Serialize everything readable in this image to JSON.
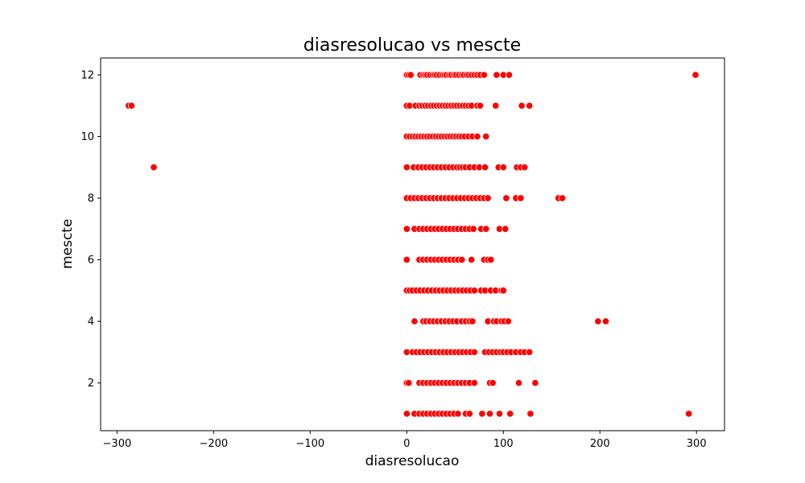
{
  "chart_data": {
    "type": "scatter",
    "title": "diasresolucao vs mescte",
    "xlabel": "diasresolucao",
    "ylabel": "mescte",
    "xlim": [
      -317,
      329
    ],
    "ylim": [
      0.45,
      12.55
    ],
    "x_ticks": [
      -300,
      -200,
      -100,
      0,
      100,
      200,
      300
    ],
    "y_ticks": [
      2,
      4,
      6,
      8,
      10,
      12
    ],
    "x_tick_labels": [
      "−300",
      "−200",
      "−100",
      "0",
      "100",
      "200",
      "300"
    ],
    "y_tick_labels": [
      "2",
      "4",
      "6",
      "8",
      "10",
      "12"
    ],
    "grid": false,
    "legend": "none",
    "marker_color": "#ff0000",
    "marker_edge_color": "#ffffff",
    "series": [
      {
        "points": [
          [
            0,
            12
          ],
          [
            2,
            12
          ],
          [
            4,
            12
          ],
          [
            14,
            12
          ],
          [
            17,
            12
          ],
          [
            19,
            12
          ],
          [
            21,
            12
          ],
          [
            24,
            12
          ],
          [
            27,
            12
          ],
          [
            29,
            12
          ],
          [
            31,
            12
          ],
          [
            34,
            12
          ],
          [
            37,
            12
          ],
          [
            39,
            12
          ],
          [
            41,
            12
          ],
          [
            44,
            12
          ],
          [
            46,
            12
          ],
          [
            49,
            12
          ],
          [
            51,
            12
          ],
          [
            54,
            12
          ],
          [
            57,
            12
          ],
          [
            59,
            12
          ],
          [
            62,
            12
          ],
          [
            64,
            12
          ],
          [
            67,
            12
          ],
          [
            70,
            12
          ],
          [
            73,
            12
          ],
          [
            76,
            12
          ],
          [
            80,
            12
          ],
          [
            93,
            12
          ],
          [
            100,
            12
          ],
          [
            106,
            12
          ],
          [
            299,
            12
          ],
          [
            -288,
            11
          ],
          [
            -285,
            11
          ],
          [
            0,
            11
          ],
          [
            3,
            11
          ],
          [
            9,
            11
          ],
          [
            13,
            11
          ],
          [
            16,
            11
          ],
          [
            19,
            11
          ],
          [
            22,
            11
          ],
          [
            25,
            11
          ],
          [
            28,
            11
          ],
          [
            31,
            11
          ],
          [
            34,
            11
          ],
          [
            37,
            11
          ],
          [
            40,
            11
          ],
          [
            43,
            11
          ],
          [
            46,
            11
          ],
          [
            49,
            11
          ],
          [
            52,
            11
          ],
          [
            55,
            11
          ],
          [
            58,
            11
          ],
          [
            61,
            11
          ],
          [
            64,
            11
          ],
          [
            67,
            11
          ],
          [
            73,
            11
          ],
          [
            76,
            11
          ],
          [
            92,
            11
          ],
          [
            119,
            11
          ],
          [
            127,
            11
          ],
          [
            0,
            10
          ],
          [
            3,
            10
          ],
          [
            6,
            10
          ],
          [
            9,
            10
          ],
          [
            12,
            10
          ],
          [
            15,
            10
          ],
          [
            18,
            10
          ],
          [
            21,
            10
          ],
          [
            24,
            10
          ],
          [
            27,
            10
          ],
          [
            30,
            10
          ],
          [
            33,
            10
          ],
          [
            36,
            10
          ],
          [
            39,
            10
          ],
          [
            42,
            10
          ],
          [
            45,
            10
          ],
          [
            48,
            10
          ],
          [
            51,
            10
          ],
          [
            54,
            10
          ],
          [
            57,
            10
          ],
          [
            60,
            10
          ],
          [
            64,
            10
          ],
          [
            68,
            10
          ],
          [
            73,
            10
          ],
          [
            82,
            10
          ],
          [
            -262,
            9
          ],
          [
            0,
            9
          ],
          [
            7,
            9
          ],
          [
            12,
            9
          ],
          [
            16,
            9
          ],
          [
            20,
            9
          ],
          [
            24,
            9
          ],
          [
            28,
            9
          ],
          [
            32,
            9
          ],
          [
            36,
            9
          ],
          [
            40,
            9
          ],
          [
            44,
            9
          ],
          [
            48,
            9
          ],
          [
            52,
            9
          ],
          [
            55,
            9
          ],
          [
            58,
            9
          ],
          [
            61,
            9
          ],
          [
            65,
            9
          ],
          [
            70,
            9
          ],
          [
            75,
            9
          ],
          [
            81,
            9
          ],
          [
            95,
            9
          ],
          [
            100,
            9
          ],
          [
            114,
            9
          ],
          [
            118,
            9
          ],
          [
            122,
            9
          ],
          [
            0,
            8
          ],
          [
            4,
            8
          ],
          [
            8,
            8
          ],
          [
            12,
            8
          ],
          [
            16,
            8
          ],
          [
            20,
            8
          ],
          [
            24,
            8
          ],
          [
            28,
            8
          ],
          [
            32,
            8
          ],
          [
            36,
            8
          ],
          [
            40,
            8
          ],
          [
            44,
            8
          ],
          [
            48,
            8
          ],
          [
            52,
            8
          ],
          [
            56,
            8
          ],
          [
            60,
            8
          ],
          [
            64,
            8
          ],
          [
            68,
            8
          ],
          [
            72,
            8
          ],
          [
            76,
            8
          ],
          [
            80,
            8
          ],
          [
            84,
            8
          ],
          [
            103,
            8
          ],
          [
            113,
            8
          ],
          [
            118,
            8
          ],
          [
            157,
            8
          ],
          [
            161,
            8
          ],
          [
            0,
            7
          ],
          [
            8,
            7
          ],
          [
            13,
            7
          ],
          [
            17,
            7
          ],
          [
            21,
            7
          ],
          [
            25,
            7
          ],
          [
            29,
            7
          ],
          [
            33,
            7
          ],
          [
            37,
            7
          ],
          [
            41,
            7
          ],
          [
            45,
            7
          ],
          [
            49,
            7
          ],
          [
            53,
            7
          ],
          [
            57,
            7
          ],
          [
            61,
            7
          ],
          [
            65,
            7
          ],
          [
            69,
            7
          ],
          [
            77,
            7
          ],
          [
            82,
            7
          ],
          [
            96,
            7
          ],
          [
            102,
            7
          ],
          [
            0,
            6
          ],
          [
            13,
            6
          ],
          [
            17,
            6
          ],
          [
            21,
            6
          ],
          [
            25,
            6
          ],
          [
            29,
            6
          ],
          [
            33,
            6
          ],
          [
            37,
            6
          ],
          [
            41,
            6
          ],
          [
            45,
            6
          ],
          [
            49,
            6
          ],
          [
            53,
            6
          ],
          [
            57,
            6
          ],
          [
            67,
            6
          ],
          [
            80,
            6
          ],
          [
            84,
            6
          ],
          [
            87,
            6
          ],
          [
            0,
            5
          ],
          [
            3,
            5
          ],
          [
            6,
            5
          ],
          [
            10,
            5
          ],
          [
            14,
            5
          ],
          [
            18,
            5
          ],
          [
            22,
            5
          ],
          [
            26,
            5
          ],
          [
            30,
            5
          ],
          [
            34,
            5
          ],
          [
            38,
            5
          ],
          [
            42,
            5
          ],
          [
            46,
            5
          ],
          [
            50,
            5
          ],
          [
            54,
            5
          ],
          [
            58,
            5
          ],
          [
            62,
            5
          ],
          [
            66,
            5
          ],
          [
            70,
            5
          ],
          [
            77,
            5
          ],
          [
            81,
            5
          ],
          [
            87,
            5
          ],
          [
            92,
            5
          ],
          [
            98,
            5
          ],
          [
            100,
            5
          ],
          [
            8,
            4
          ],
          [
            17,
            4
          ],
          [
            20,
            4
          ],
          [
            24,
            4
          ],
          [
            28,
            4
          ],
          [
            32,
            4
          ],
          [
            36,
            4
          ],
          [
            40,
            4
          ],
          [
            44,
            4
          ],
          [
            48,
            4
          ],
          [
            52,
            4
          ],
          [
            57,
            4
          ],
          [
            61,
            4
          ],
          [
            65,
            4
          ],
          [
            68,
            4
          ],
          [
            84,
            4
          ],
          [
            90,
            4
          ],
          [
            93,
            4
          ],
          [
            98,
            4
          ],
          [
            101,
            4
          ],
          [
            105,
            4
          ],
          [
            198,
            4
          ],
          [
            206,
            4
          ],
          [
            0,
            3
          ],
          [
            6,
            3
          ],
          [
            10,
            3
          ],
          [
            14,
            3
          ],
          [
            18,
            3
          ],
          [
            22,
            3
          ],
          [
            26,
            3
          ],
          [
            30,
            3
          ],
          [
            34,
            3
          ],
          [
            38,
            3
          ],
          [
            42,
            3
          ],
          [
            46,
            3
          ],
          [
            50,
            3
          ],
          [
            54,
            3
          ],
          [
            58,
            3
          ],
          [
            62,
            3
          ],
          [
            66,
            3
          ],
          [
            70,
            3
          ],
          [
            81,
            3
          ],
          [
            85,
            3
          ],
          [
            89,
            3
          ],
          [
            93,
            3
          ],
          [
            97,
            3
          ],
          [
            100,
            3
          ],
          [
            104,
            3
          ],
          [
            108,
            3
          ],
          [
            113,
            3
          ],
          [
            118,
            3
          ],
          [
            122,
            3
          ],
          [
            127,
            3
          ],
          [
            0,
            2
          ],
          [
            2,
            2
          ],
          [
            13,
            2
          ],
          [
            17,
            2
          ],
          [
            21,
            2
          ],
          [
            25,
            2
          ],
          [
            29,
            2
          ],
          [
            33,
            2
          ],
          [
            37,
            2
          ],
          [
            41,
            2
          ],
          [
            45,
            2
          ],
          [
            49,
            2
          ],
          [
            53,
            2
          ],
          [
            57,
            2
          ],
          [
            61,
            2
          ],
          [
            65,
            2
          ],
          [
            70,
            2
          ],
          [
            86,
            2
          ],
          [
            89,
            2
          ],
          [
            116,
            2
          ],
          [
            133,
            2
          ],
          [
            0,
            1
          ],
          [
            8,
            1
          ],
          [
            13,
            1
          ],
          [
            17,
            1
          ],
          [
            21,
            1
          ],
          [
            25,
            1
          ],
          [
            29,
            1
          ],
          [
            33,
            1
          ],
          [
            37,
            1
          ],
          [
            41,
            1
          ],
          [
            45,
            1
          ],
          [
            49,
            1
          ],
          [
            53,
            1
          ],
          [
            61,
            1
          ],
          [
            65,
            1
          ],
          [
            78,
            1
          ],
          [
            86,
            1
          ],
          [
            96,
            1
          ],
          [
            107,
            1
          ],
          [
            128,
            1
          ],
          [
            292,
            1
          ]
        ]
      }
    ]
  }
}
